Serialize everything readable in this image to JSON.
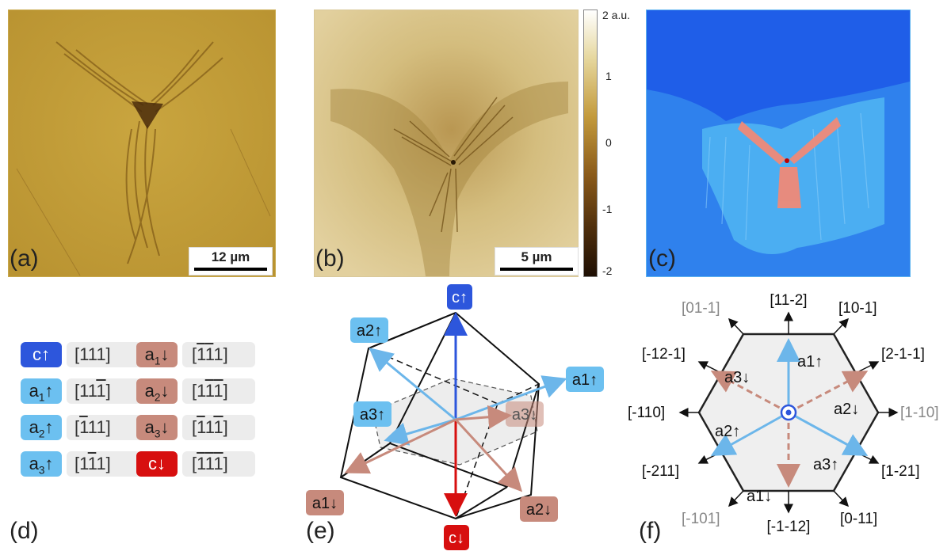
{
  "panels": {
    "a": {
      "label": "(a)",
      "scale": "12 µm"
    },
    "b": {
      "label": "(b)",
      "scale": "5 µm"
    },
    "c": {
      "label": "(c)"
    },
    "d": {
      "label": "(d)"
    },
    "e": {
      "label": "(e)"
    },
    "f": {
      "label": "(f)"
    }
  },
  "colorbar": {
    "ticks": [
      "2 a.u.",
      "1",
      "0",
      "-1",
      "-2"
    ]
  },
  "colors": {
    "c_up": "#2d56dc",
    "a_up": "#6cc0f0",
    "a_down": "#c78a7c",
    "c_down": "#d70f0f"
  },
  "table": {
    "left": [
      {
        "label": "c↑",
        "dir": "[111]"
      },
      {
        "label": "a1↑",
        "dir": "[11-1]"
      },
      {
        "label": "a2↑",
        "dir": "[-111]"
      },
      {
        "label": "a3↑",
        "dir": "[1-11]"
      }
    ],
    "right": [
      {
        "label": "a1↓",
        "dir": "[-1-11]"
      },
      {
        "label": "a2↓",
        "dir": "[1-1-1]"
      },
      {
        "label": "a3↓",
        "dir": "[-11-1]"
      },
      {
        "label": "c↓",
        "dir": "[-1-1-1]"
      }
    ]
  },
  "cube_labels": {
    "c_up": "c↑",
    "a1_up": "a1↑",
    "a2_up": "a2↑",
    "a3_up": "a3↑",
    "a1_down": "a1↓",
    "a2_down": "a2↓",
    "a3_down": "a3↓",
    "c_down": "c↓"
  },
  "hexagon": {
    "directions": [
      "[11-2]",
      "[10-1]",
      "[2-1-1]",
      "[1-10]",
      "[1-21]",
      "[0-11]",
      "[-1-12]",
      "[-101]",
      "[-211]",
      "[-110]",
      "[-12-1]",
      "[01-1]"
    ],
    "vectors": [
      "a1↑",
      "a2↓",
      "a3↑",
      "a1↓",
      "a2↑",
      "a3↓"
    ]
  }
}
